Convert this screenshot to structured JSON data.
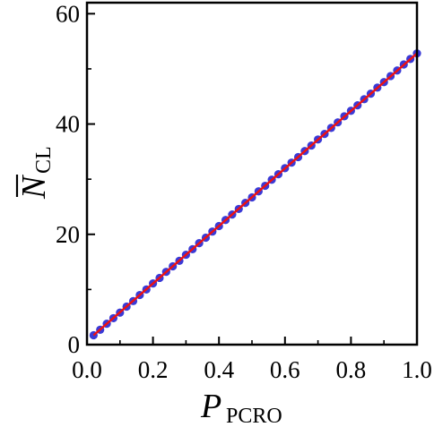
{
  "chart_data": {
    "type": "scatter",
    "xlabel": {
      "main": "P",
      "sub": "PCRO"
    },
    "ylabel": {
      "main": "N",
      "sub": "CL",
      "overbar": true
    },
    "xlim": [
      0,
      1.0
    ],
    "ylim": [
      0,
      62
    ],
    "x_ticks": [
      0.0,
      0.2,
      0.4,
      0.6,
      0.8,
      1.0
    ],
    "x_tick_labels": [
      "0.0",
      "0.2",
      "0.4",
      "0.6",
      "0.8",
      "1.0"
    ],
    "y_ticks": [
      0,
      20,
      40,
      60
    ],
    "y_tick_labels": [
      "0",
      "20",
      "40",
      "60"
    ],
    "grid": false,
    "series": [
      {
        "kind": "points",
        "color": "#3a3ad6",
        "x": [
          0.02,
          0.04,
          0.06,
          0.08,
          0.1,
          0.12,
          0.14,
          0.16,
          0.18,
          0.2,
          0.22,
          0.24,
          0.26,
          0.28,
          0.3,
          0.32,
          0.34,
          0.36,
          0.38,
          0.4,
          0.42,
          0.44,
          0.46,
          0.48,
          0.5,
          0.52,
          0.54,
          0.56,
          0.58,
          0.6,
          0.62,
          0.64,
          0.66,
          0.68,
          0.7,
          0.72,
          0.74,
          0.76,
          0.78,
          0.8,
          0.82,
          0.84,
          0.86,
          0.88,
          0.9,
          0.92,
          0.94,
          0.96,
          0.98,
          1.0
        ],
        "y": [
          1.7,
          2.7,
          3.8,
          4.8,
          5.8,
          6.9,
          7.9,
          9.0,
          10.0,
          11.1,
          12.1,
          13.2,
          14.2,
          15.2,
          16.3,
          17.3,
          18.4,
          19.4,
          20.5,
          21.5,
          22.6,
          23.6,
          24.6,
          25.7,
          26.7,
          27.8,
          28.8,
          29.9,
          30.9,
          32.0,
          33.0,
          34.0,
          35.1,
          36.1,
          37.2,
          38.2,
          39.3,
          40.3,
          41.4,
          42.4,
          43.4,
          44.5,
          45.5,
          46.6,
          47.6,
          48.7,
          49.7,
          50.8,
          51.8,
          52.8
        ]
      },
      {
        "kind": "fit-line",
        "color": "#ee1111",
        "x": [
          0.02,
          1.0
        ],
        "y": [
          1.7,
          52.8
        ]
      }
    ]
  }
}
